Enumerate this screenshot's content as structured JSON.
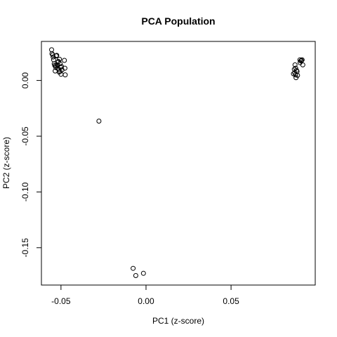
{
  "chart_data": {
    "type": "scatter",
    "title": "PCA Population",
    "xlabel": "PC1 (z-score)",
    "ylabel": "PC2 (z-score)",
    "xlim": [
      -0.0615,
      0.0995
    ],
    "ylim": [
      -0.1835,
      0.035
    ],
    "grid": false,
    "xticks": [
      {
        "value": -0.05,
        "label": "-0.05"
      },
      {
        "value": 0.0,
        "label": "0.00"
      },
      {
        "value": 0.05,
        "label": "0.05"
      }
    ],
    "yticks": [
      {
        "value": 0.0,
        "label": "0.00"
      },
      {
        "value": -0.05,
        "label": "-0.05"
      },
      {
        "value": -0.1,
        "label": "-0.10"
      },
      {
        "value": -0.15,
        "label": "-0.15"
      }
    ],
    "x": [
      -0.0555,
      -0.0553,
      -0.0548,
      -0.0546,
      -0.0543,
      -0.054,
      -0.0537,
      -0.0534,
      -0.0531,
      -0.0528,
      -0.0525,
      -0.0522,
      -0.052,
      -0.0517,
      -0.0514,
      -0.0511,
      -0.0509,
      -0.0506,
      -0.0503,
      -0.05,
      -0.0497,
      -0.0494,
      -0.048,
      -0.0477,
      -0.0475,
      -0.053,
      -0.0515,
      -0.0505,
      -0.0277,
      -0.0076,
      -0.006,
      -0.0015,
      0.0867,
      0.0872,
      0.0876,
      0.0879,
      0.0882,
      0.0885,
      0.0888,
      0.0891,
      0.0905,
      0.091,
      0.0914,
      0.0918,
      0.0922,
      0.0906,
      0.0874,
      0.088
    ],
    "y": [
      0.0275,
      0.024,
      0.023,
      0.021,
      0.0185,
      0.015,
      0.0135,
      0.0085,
      0.013,
      0.022,
      0.0225,
      0.014,
      0.011,
      0.0165,
      0.01,
      0.0075,
      0.019,
      0.008,
      0.012,
      0.0055,
      0.0125,
      0.0095,
      0.018,
      0.011,
      0.005,
      0.0115,
      0.017,
      0.015,
      -0.0365,
      -0.1685,
      -0.175,
      -0.173,
      0.006,
      0.01,
      0.014,
      0.005,
      0.0025,
      0.009,
      0.008,
      0.0045,
      0.0185,
      0.0175,
      0.018,
      0.0185,
      0.014,
      0.016,
      0.007,
      0.011
    ]
  }
}
